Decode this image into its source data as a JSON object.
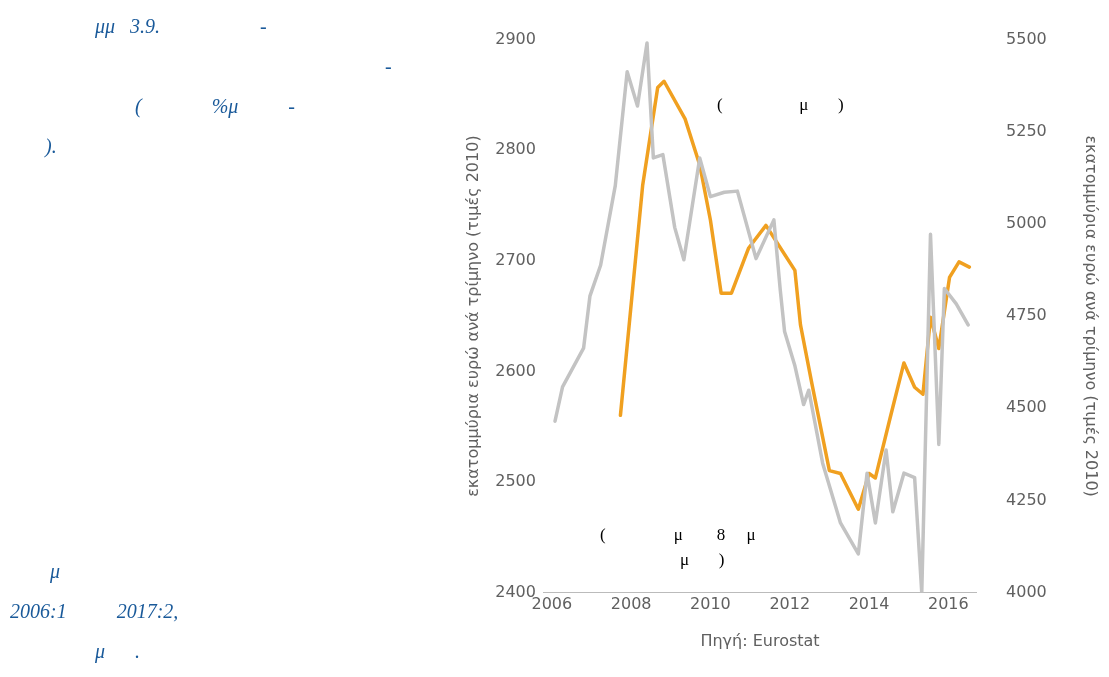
{
  "chart_data": {
    "type": "line",
    "xlabel": "Πηγή: Eurostat",
    "ylabel": "εκατομμύρια ευρώ ανά τρίμηνο (τιμές 2010)",
    "y2label": "εκατομμύρια ευρώ ανά τρίμηνο (τιμές 2010)",
    "annotations": [
      "μμ   3.9.                    -",
      "-",
      "(              %μ          -",
      ").",
      "μ",
      "2006:1          2017:2,",
      "μ      .",
      "(                  μ       )",
      "(                μ        8     μ",
      "μ       )"
    ],
    "xlim": [
      2005.8,
      2016.7
    ],
    "xticks": [
      2006,
      2008,
      2010,
      2012,
      2014,
      2016
    ],
    "ylim": [
      2400,
      2900
    ],
    "yticks": [
      2400,
      2500,
      2600,
      2700,
      2800,
      2900
    ],
    "y2lim": [
      4000,
      5500
    ],
    "y2ticks": [
      4000,
      4250,
      4500,
      4750,
      5000,
      5250,
      5500
    ],
    "grid": false,
    "legend": false,
    "marker": "none",
    "line_style": "solid",
    "series": [
      {
        "color": "#c3c3c3",
        "x": [
          2006.08,
          2006.27,
          2006.8,
          2006.96,
          2007.23,
          2007.6,
          2007.9,
          2008.16,
          2008.4,
          2008.56,
          2008.8,
          2009.1,
          2009.33,
          2009.73,
          2010.0,
          2010.35,
          2010.68,
          2011.15,
          2011.6,
          2011.76,
          2011.87,
          2012.13,
          2012.35,
          2012.48,
          2012.83,
          2013.28,
          2013.73,
          2013.95,
          2014.16,
          2014.43,
          2014.6,
          2014.88,
          2015.15,
          2015.33,
          2015.55,
          2015.76,
          2015.9,
          2016.2,
          2016.5
        ],
        "values": [
          2555,
          2586,
          2621,
          2668,
          2696,
          2768,
          2871,
          2840,
          2897,
          2793,
          2796,
          2730,
          2701,
          2793,
          2758,
          2762,
          2763,
          2702,
          2737,
          2674,
          2636,
          2605,
          2570,
          2583,
          2517,
          2463,
          2435,
          2508,
          2463,
          2529,
          2473,
          2508,
          2504,
          2400,
          2724,
          2534,
          2675,
          2661,
          2642
        ]
      },
      {
        "color": "#f0a020",
        "axis": "y2",
        "x": [
          2007.73,
          2008.29,
          2008.67,
          2008.83,
          2009.36,
          2009.73,
          2010.0,
          2010.27,
          2010.53,
          2010.96,
          2011.4,
          2012.13,
          2012.27,
          2012.56,
          2013.0,
          2013.28,
          2013.73,
          2014.0,
          2014.16,
          2014.53,
          2014.88,
          2015.15,
          2015.36,
          2015.55,
          2015.76,
          2016.03,
          2016.27,
          2016.53
        ],
        "values": [
          4481,
          5104,
          5370,
          5387,
          5285,
          5160,
          5010,
          4812,
          4812,
          4934,
          4996,
          4874,
          4727,
          4566,
          4331,
          4323,
          4226,
          4323,
          4311,
          4473,
          4623,
          4557,
          4538,
          4747,
          4662,
          4855,
          4897,
          4883
        ]
      }
    ]
  }
}
